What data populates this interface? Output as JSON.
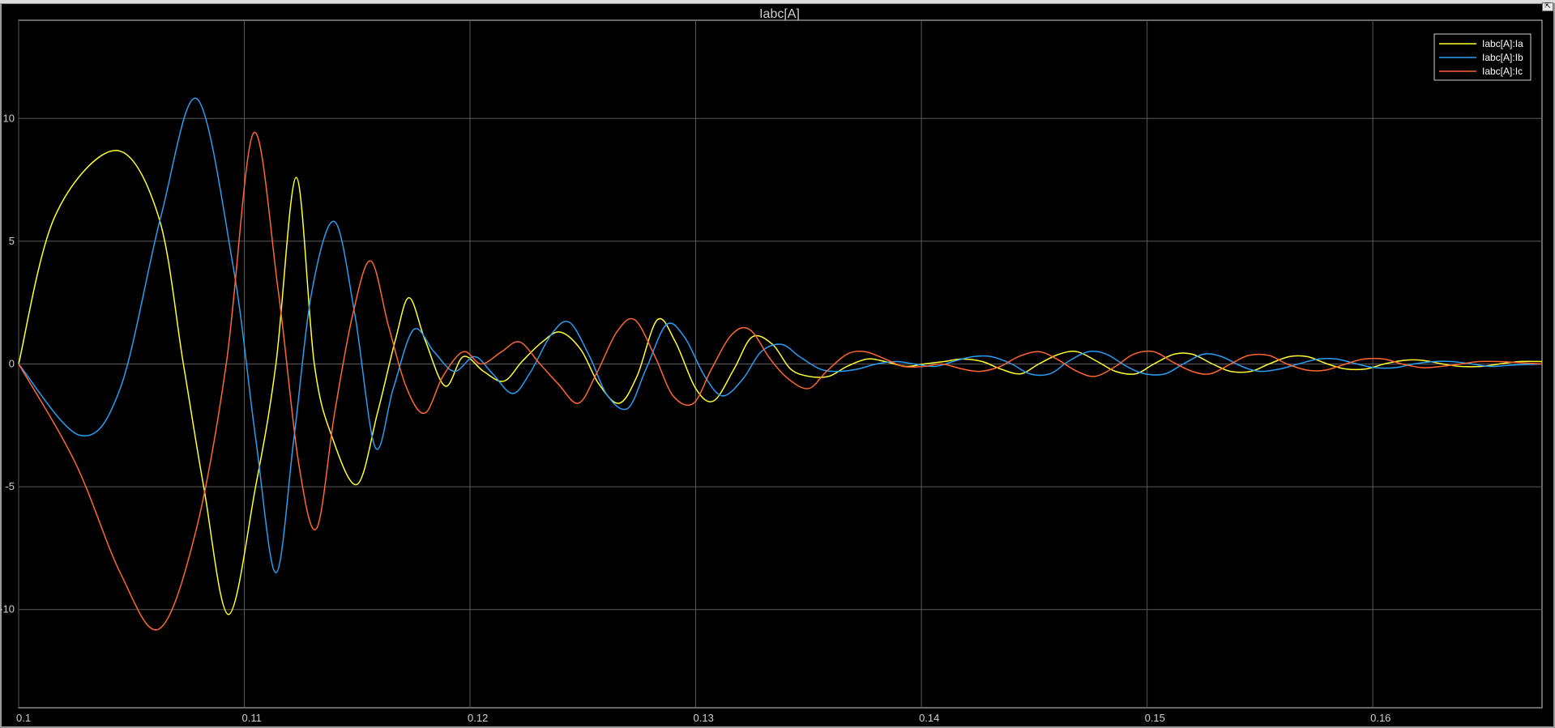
{
  "window": {
    "undock_icon": "undock-icon",
    "undock_glyph": "⇱"
  },
  "chart_data": {
    "type": "line",
    "title": "Iabc[A]",
    "xlabel": "",
    "ylabel": "",
    "xlim": [
      0.1,
      0.1675
    ],
    "ylim": [
      -14,
      14
    ],
    "x_ticks": [
      0.1,
      0.11,
      0.12,
      0.13,
      0.14,
      0.15,
      0.16
    ],
    "x_tick_labels": [
      "0.1",
      "0.11",
      "0.12",
      "0.13",
      "0.14",
      "0.15",
      "0.16"
    ],
    "y_ticks": [
      -10,
      -5,
      0,
      5,
      10
    ],
    "y_tick_labels": [
      "-10",
      "-5",
      "0",
      "5",
      "10"
    ],
    "grid": true,
    "legend_position": "top-right",
    "background": "#000000",
    "grid_color": "#5a5a5a",
    "series": [
      {
        "name": "Iabc[A]:Ia",
        "color": "#ffff33",
        "x": [
          0.1,
          0.1016,
          0.1043,
          0.1062,
          0.1073,
          0.1082,
          0.1093,
          0.1105,
          0.1114,
          0.1123,
          0.1131,
          0.1139,
          0.115,
          0.1159,
          0.1167,
          0.1173,
          0.118,
          0.1189,
          0.1197,
          0.1206,
          0.1215,
          0.1223,
          0.1232,
          0.124,
          0.1249,
          0.1257,
          0.1266,
          0.1274,
          0.1283,
          0.1291,
          0.13,
          0.1308,
          0.1317,
          0.1325,
          0.1334,
          0.1342,
          0.135,
          0.1359,
          0.1367,
          0.1376,
          0.1384,
          0.1393,
          0.1401,
          0.141,
          0.1418,
          0.1427,
          0.1435,
          0.1444,
          0.1452,
          0.1461,
          0.1469,
          0.1478,
          0.1486,
          0.1495,
          0.1503,
          0.1512,
          0.152,
          0.1529,
          0.1537,
          0.1546,
          0.1554,
          0.1563,
          0.1571,
          0.158,
          0.1588,
          0.1597,
          0.1605,
          0.1614,
          0.1622,
          0.1631,
          0.1639,
          0.1648,
          0.1656,
          0.1665,
          0.1675
        ],
        "y": [
          0,
          6.0,
          8.7,
          6.0,
          0,
          -5.0,
          -10.2,
          -5.0,
          0,
          7.6,
          0,
          -3.0,
          -4.9,
          -2.0,
          1.0,
          2.7,
          1.0,
          -0.9,
          0.3,
          -0.3,
          -0.7,
          0.1,
          0.9,
          1.3,
          0.6,
          -0.8,
          -1.6,
          -0.5,
          1.8,
          0.9,
          -1.0,
          -1.5,
          -0.2,
          1.1,
          0.8,
          -0.2,
          -0.5,
          -0.5,
          -0.1,
          0.2,
          0.1,
          -0.1,
          0.0,
          0.1,
          0.2,
          0.1,
          -0.2,
          -0.4,
          0.0,
          0.4,
          0.5,
          0.1,
          -0.3,
          -0.4,
          0.0,
          0.4,
          0.4,
          0.0,
          -0.3,
          -0.3,
          0.0,
          0.3,
          0.3,
          0.0,
          -0.2,
          -0.2,
          0.0,
          0.15,
          0.15,
          0.0,
          -0.1,
          -0.1,
          0.0,
          0.1,
          0.1
        ]
      },
      {
        "name": "Iabc[A]:Ib",
        "color": "#2a9df4",
        "x": [
          0.1,
          0.1027,
          0.1045,
          0.1063,
          0.1079,
          0.1095,
          0.1105,
          0.1114,
          0.1122,
          0.113,
          0.114,
          0.1149,
          0.1158,
          0.1166,
          0.1175,
          0.1184,
          0.1193,
          0.1202,
          0.121,
          0.1219,
          0.1227,
          0.1236,
          0.1244,
          0.1253,
          0.1261,
          0.127,
          0.1278,
          0.1287,
          0.1295,
          0.1304,
          0.1312,
          0.1321,
          0.1329,
          0.1338,
          0.1346,
          0.1355,
          0.1363,
          0.1372,
          0.138,
          0.1389,
          0.1397,
          0.1406,
          0.1414,
          0.1423,
          0.1431,
          0.144,
          0.1448,
          0.1457,
          0.1465,
          0.1474,
          0.1482,
          0.1491,
          0.1499,
          0.1508,
          0.1516,
          0.1525,
          0.1533,
          0.1542,
          0.155,
          0.1559,
          0.1567,
          0.1576,
          0.1584,
          0.1593,
          0.1601,
          0.161,
          0.1618,
          0.1627,
          0.1635,
          0.1644,
          0.1652,
          0.1661,
          0.1675
        ],
        "y": [
          0,
          -2.9,
          -1.0,
          6.0,
          10.8,
          4.0,
          -3.0,
          -8.5,
          -3.0,
          3.0,
          5.8,
          2.0,
          -3.4,
          -1.0,
          1.4,
          0.5,
          -0.3,
          0.3,
          -0.4,
          -1.2,
          -0.3,
          1.2,
          1.7,
          0.3,
          -1.3,
          -1.8,
          -0.2,
          1.6,
          1.1,
          -0.5,
          -1.3,
          -0.6,
          0.5,
          0.8,
          0.3,
          -0.2,
          -0.3,
          -0.2,
          0.0,
          0.1,
          0.0,
          -0.1,
          0.1,
          0.3,
          0.3,
          0.0,
          -0.4,
          -0.4,
          0.1,
          0.5,
          0.4,
          -0.1,
          -0.4,
          -0.4,
          0.0,
          0.4,
          0.3,
          -0.1,
          -0.3,
          -0.2,
          0.0,
          0.2,
          0.2,
          0.0,
          -0.15,
          -0.15,
          0.0,
          0.1,
          0.1,
          0.0,
          -0.1,
          -0.05,
          0.0
        ]
      },
      {
        "name": "Iabc[A]:Ic",
        "color": "#ff6633",
        "x": [
          0.1,
          0.1025,
          0.1045,
          0.1062,
          0.1078,
          0.1092,
          0.1104,
          0.1115,
          0.1124,
          0.1132,
          0.114,
          0.1148,
          0.1156,
          0.1164,
          0.1172,
          0.118,
          0.1188,
          0.1197,
          0.1205,
          0.1214,
          0.1222,
          0.1231,
          0.1239,
          0.1248,
          0.1256,
          0.1265,
          0.1273,
          0.1282,
          0.129,
          0.1299,
          0.1307,
          0.1316,
          0.1324,
          0.1333,
          0.1341,
          0.135,
          0.1358,
          0.1367,
          0.1375,
          0.1384,
          0.1392,
          0.1401,
          0.1409,
          0.1418,
          0.1426,
          0.1435,
          0.1443,
          0.1452,
          0.146,
          0.1469,
          0.1477,
          0.1486,
          0.1494,
          0.1503,
          0.1511,
          0.152,
          0.1528,
          0.1537,
          0.1545,
          0.1554,
          0.1562,
          0.1571,
          0.1579,
          0.1588,
          0.1596,
          0.1605,
          0.1613,
          0.1622,
          0.163,
          0.1639,
          0.1647,
          0.1656,
          0.1675
        ],
        "y": [
          0,
          -4.0,
          -8.5,
          -10.8,
          -7.0,
          0,
          9.4,
          3.0,
          -4.0,
          -6.7,
          -2.0,
          2.0,
          4.2,
          1.5,
          -1.0,
          -2.0,
          -0.5,
          0.5,
          0.0,
          0.5,
          0.9,
          0.0,
          -0.8,
          -1.6,
          -0.4,
          1.3,
          1.8,
          0.3,
          -1.3,
          -1.6,
          -0.2,
          1.2,
          1.4,
          0.2,
          -0.6,
          -1.0,
          -0.3,
          0.4,
          0.5,
          0.2,
          -0.1,
          -0.1,
          0.0,
          -0.2,
          -0.3,
          -0.1,
          0.3,
          0.5,
          0.2,
          -0.3,
          -0.5,
          -0.1,
          0.4,
          0.5,
          0.1,
          -0.3,
          -0.4,
          0.0,
          0.35,
          0.35,
          0.0,
          -0.25,
          -0.25,
          0.0,
          0.2,
          0.2,
          0.0,
          -0.15,
          -0.1,
          0.0,
          0.1,
          0.1,
          0.0
        ]
      }
    ]
  }
}
